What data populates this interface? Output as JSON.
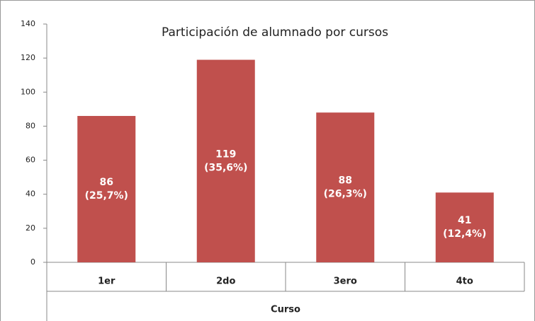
{
  "chart_data": {
    "type": "bar",
    "title": "Participación de alumnado por cursos",
    "x_label": "Curso",
    "categories": [
      "1er",
      "2do",
      "3ero",
      "4to"
    ],
    "values": [
      86,
      119,
      88,
      41
    ],
    "value_labels": [
      "86\n(25,7%)",
      "119\n(35,6%)",
      "88\n(26,3%)",
      "41\n(12,4%)"
    ],
    "color": "#c0504d",
    "ylim": [
      0,
      140
    ],
    "yticks": [
      0,
      20,
      40,
      60,
      80,
      100,
      120,
      140
    ],
    "grid": false
  }
}
